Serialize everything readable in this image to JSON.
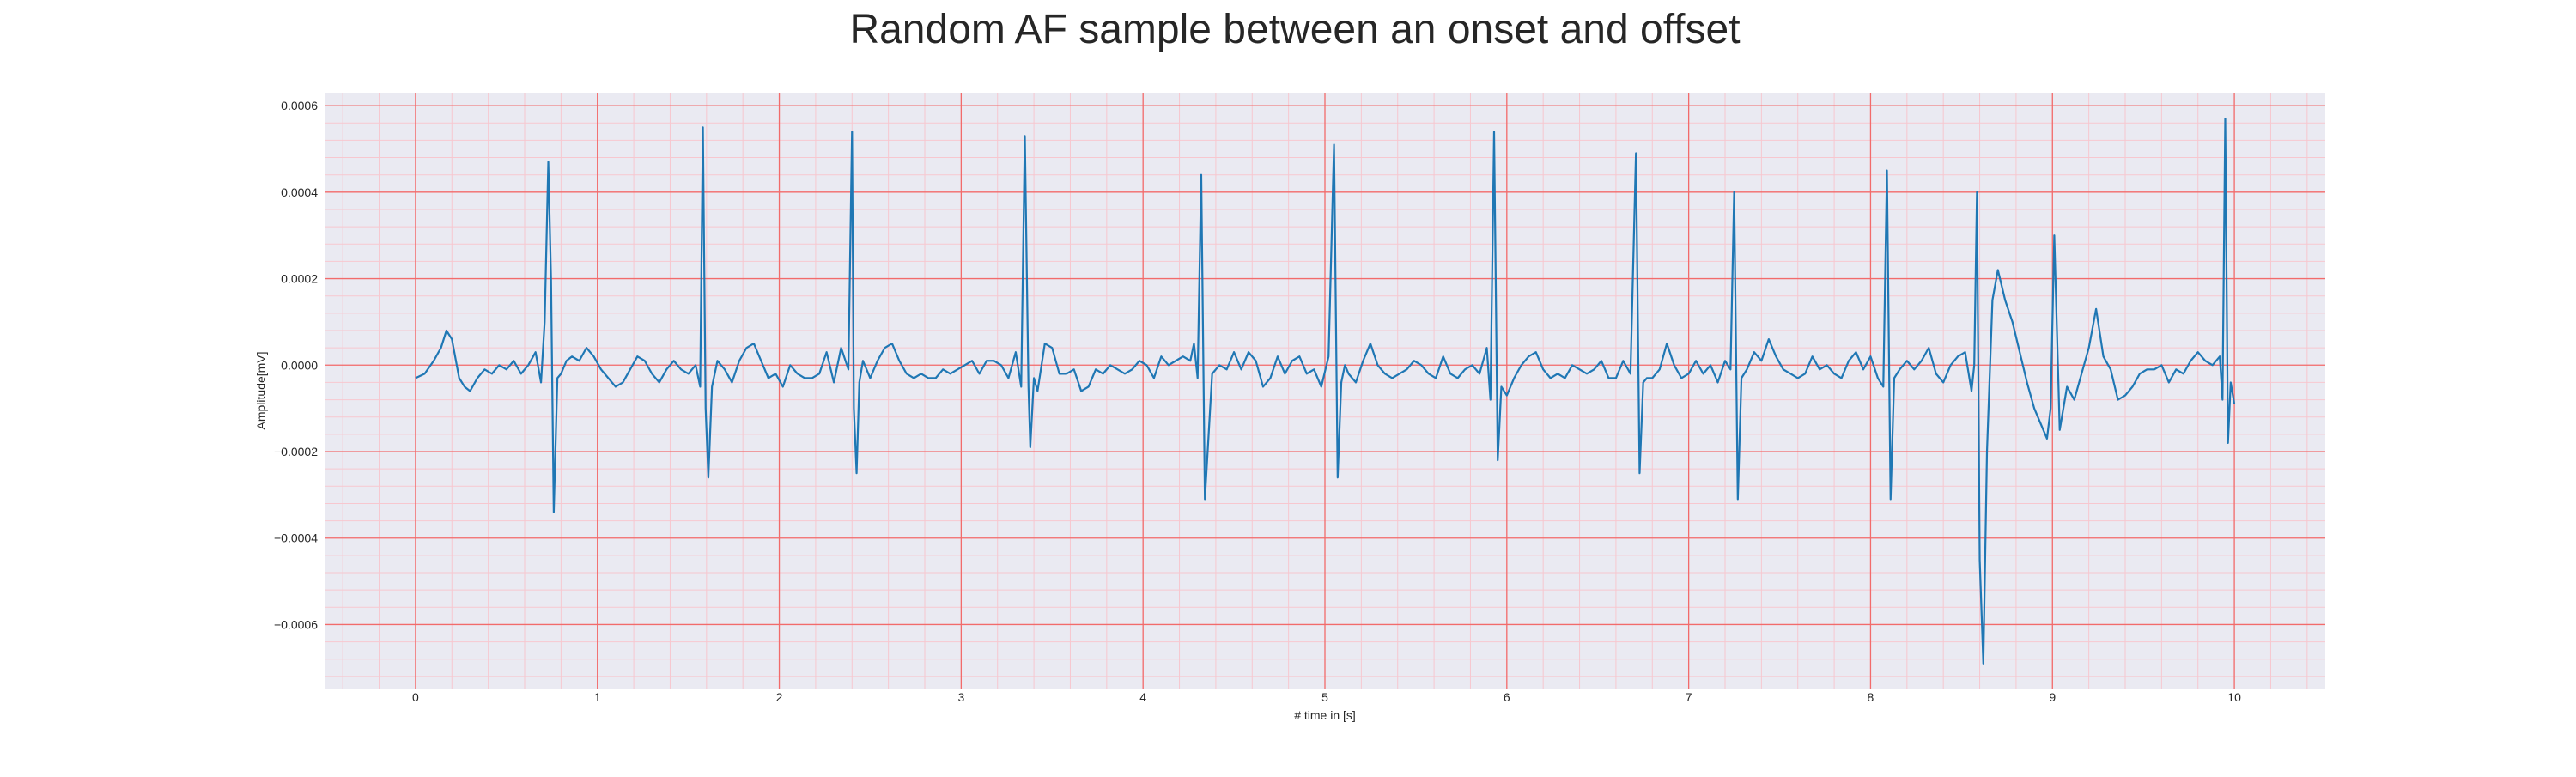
{
  "chart_data": {
    "type": "line",
    "title": "Random AF sample between an onset and offset",
    "xlabel": "# time in [s]",
    "ylabel": "Amplitude[mV]",
    "xlim": [
      -0.5,
      10.5
    ],
    "ylim": [
      -0.00075,
      0.00063
    ],
    "x_ticks": [
      0,
      1,
      2,
      3,
      4,
      5,
      6,
      7,
      8,
      9,
      10
    ],
    "x_tick_labels": [
      "0",
      "1",
      "2",
      "3",
      "4",
      "5",
      "6",
      "7",
      "8",
      "9",
      "10"
    ],
    "y_ticks": [
      -0.0006,
      -0.0004,
      -0.0002,
      0.0,
      0.0002,
      0.0004,
      0.0006
    ],
    "y_tick_labels": [
      "−0.0006",
      "−0.0004",
      "−0.0002",
      "0.0000",
      "0.0002",
      "0.0004",
      "0.0006"
    ],
    "grid": true,
    "minor_grid": true,
    "colors": {
      "line": "#1f77b4",
      "plot_background": "#eaeaf2",
      "major_grid": "#f26b6b",
      "minor_grid": "#f7c7cf"
    },
    "series": [
      {
        "x": [
          0.0,
          0.05,
          0.1,
          0.14,
          0.17,
          0.2,
          0.24,
          0.27,
          0.3,
          0.34,
          0.38,
          0.42,
          0.46,
          0.5,
          0.54,
          0.58,
          0.62,
          0.66,
          0.69,
          0.71,
          0.73,
          0.745,
          0.76,
          0.78,
          0.8,
          0.83,
          0.86,
          0.9,
          0.94,
          0.98,
          1.02,
          1.06,
          1.1,
          1.14,
          1.18,
          1.22,
          1.26,
          1.3,
          1.34,
          1.38,
          1.42,
          1.46,
          1.5,
          1.54,
          1.565,
          1.58,
          1.595,
          1.61,
          1.63,
          1.66,
          1.7,
          1.74,
          1.78,
          1.82,
          1.86,
          1.9,
          1.94,
          1.98,
          2.02,
          2.06,
          2.1,
          2.14,
          2.18,
          2.22,
          2.26,
          2.3,
          2.34,
          2.38,
          2.4,
          2.41,
          2.425,
          2.44,
          2.46,
          2.5,
          2.54,
          2.58,
          2.62,
          2.66,
          2.7,
          2.74,
          2.78,
          2.82,
          2.86,
          2.9,
          2.94,
          2.98,
          3.02,
          3.06,
          3.1,
          3.14,
          3.18,
          3.22,
          3.26,
          3.3,
          3.33,
          3.35,
          3.37,
          3.38,
          3.4,
          3.42,
          3.46,
          3.5,
          3.54,
          3.58,
          3.62,
          3.66,
          3.7,
          3.74,
          3.78,
          3.82,
          3.86,
          3.9,
          3.94,
          3.98,
          4.02,
          4.06,
          4.1,
          4.14,
          4.18,
          4.22,
          4.26,
          4.28,
          4.3,
          4.32,
          4.34,
          4.38,
          4.42,
          4.46,
          4.5,
          4.54,
          4.58,
          4.62,
          4.66,
          4.7,
          4.74,
          4.78,
          4.82,
          4.86,
          4.9,
          4.94,
          4.98,
          5.02,
          5.05,
          5.07,
          5.09,
          5.11,
          5.13,
          5.17,
          5.21,
          5.25,
          5.29,
          5.33,
          5.37,
          5.41,
          5.45,
          5.49,
          5.53,
          5.57,
          5.61,
          5.65,
          5.69,
          5.73,
          5.77,
          5.81,
          5.85,
          5.89,
          5.91,
          5.93,
          5.95,
          5.97,
          6.0,
          6.04,
          6.08,
          6.12,
          6.16,
          6.2,
          6.24,
          6.28,
          6.32,
          6.36,
          6.4,
          6.44,
          6.48,
          6.52,
          6.56,
          6.6,
          6.64,
          6.68,
          6.71,
          6.73,
          6.75,
          6.77,
          6.8,
          6.84,
          6.88,
          6.92,
          6.96,
          7.0,
          7.04,
          7.08,
          7.12,
          7.16,
          7.2,
          7.23,
          7.25,
          7.27,
          7.29,
          7.32,
          7.36,
          7.4,
          7.44,
          7.48,
          7.52,
          7.56,
          7.6,
          7.64,
          7.68,
          7.72,
          7.76,
          7.8,
          7.84,
          7.88,
          7.92,
          7.96,
          8.0,
          8.04,
          8.07,
          8.09,
          8.11,
          8.13,
          8.16,
          8.2,
          8.24,
          8.28,
          8.32,
          8.36,
          8.4,
          8.44,
          8.48,
          8.52,
          8.555,
          8.57,
          8.585,
          8.6,
          8.62,
          8.64,
          8.67,
          8.7,
          8.74,
          8.78,
          8.82,
          8.86,
          8.9,
          8.94,
          8.97,
          8.99,
          9.01,
          9.04,
          9.08,
          9.12,
          9.16,
          9.2,
          9.24,
          9.28,
          9.32,
          9.36,
          9.4,
          9.44,
          9.48,
          9.52,
          9.56,
          9.6,
          9.64,
          9.68,
          9.72,
          9.76,
          9.8,
          9.84,
          9.88,
          9.92,
          9.935,
          9.95,
          9.965,
          9.98,
          10.0
        ],
        "y": [
          -3e-05,
          -2e-05,
          1e-05,
          4e-05,
          8e-05,
          6e-05,
          -3e-05,
          -5e-05,
          -6e-05,
          -3e-05,
          -1e-05,
          -2e-05,
          0.0,
          -1e-05,
          1e-05,
          -2e-05,
          0.0,
          3e-05,
          -4e-05,
          0.0001,
          0.00047,
          0.0002,
          -0.00034,
          -3e-05,
          -2e-05,
          1e-05,
          2e-05,
          1e-05,
          4e-05,
          2e-05,
          -1e-05,
          -3e-05,
          -5e-05,
          -4e-05,
          -1e-05,
          2e-05,
          1e-05,
          -2e-05,
          -4e-05,
          -1e-05,
          1e-05,
          -1e-05,
          -2e-05,
          0.0,
          -5e-05,
          0.00055,
          -0.0001,
          -0.00026,
          -5e-05,
          1e-05,
          -1e-05,
          -4e-05,
          1e-05,
          4e-05,
          5e-05,
          1e-05,
          -3e-05,
          -2e-05,
          -5e-05,
          0.0,
          -2e-05,
          -3e-05,
          -3e-05,
          -2e-05,
          3e-05,
          -4e-05,
          4e-05,
          -1e-05,
          0.00054,
          -0.0001,
          -0.00025,
          -4e-05,
          1e-05,
          -3e-05,
          1e-05,
          4e-05,
          5e-05,
          1e-05,
          -2e-05,
          -3e-05,
          -2e-05,
          -3e-05,
          -3e-05,
          -1e-05,
          -2e-05,
          -1e-05,
          0.0,
          1e-05,
          -2e-05,
          1e-05,
          1e-05,
          0.0,
          -3e-05,
          3e-05,
          -5e-05,
          0.00053,
          -5e-05,
          -0.00019,
          -3e-05,
          -6e-05,
          5e-05,
          4e-05,
          -2e-05,
          -2e-05,
          -1e-05,
          -6e-05,
          -5e-05,
          -1e-05,
          -2e-05,
          0.0,
          -1e-05,
          -2e-05,
          -1e-05,
          1e-05,
          0.0,
          -3e-05,
          2e-05,
          0.0,
          1e-05,
          2e-05,
          1e-05,
          5e-05,
          -3e-05,
          0.00044,
          -0.00031,
          -2e-05,
          0.0,
          -1e-05,
          3e-05,
          -1e-05,
          3e-05,
          1e-05,
          -5e-05,
          -3e-05,
          2e-05,
          -2e-05,
          1e-05,
          2e-05,
          -2e-05,
          -1e-05,
          -5e-05,
          2e-05,
          0.00051,
          -0.00026,
          -4e-05,
          0.0,
          -2e-05,
          -4e-05,
          1e-05,
          5e-05,
          0.0,
          -2e-05,
          -3e-05,
          -2e-05,
          -1e-05,
          1e-05,
          0.0,
          -2e-05,
          -3e-05,
          2e-05,
          -2e-05,
          -3e-05,
          -1e-05,
          0.0,
          -2e-05,
          4e-05,
          -8e-05,
          0.00054,
          -0.00022,
          -5e-05,
          -7e-05,
          -3e-05,
          0.0,
          2e-05,
          3e-05,
          -1e-05,
          -3e-05,
          -2e-05,
          -3e-05,
          0.0,
          -1e-05,
          -2e-05,
          -1e-05,
          1e-05,
          -3e-05,
          -3e-05,
          1e-05,
          -2e-05,
          0.00049,
          -0.00025,
          -4e-05,
          -3e-05,
          -3e-05,
          -1e-05,
          5e-05,
          0.0,
          -3e-05,
          -2e-05,
          1e-05,
          -2e-05,
          0.0,
          -4e-05,
          1e-05,
          -1e-05,
          0.0004,
          -0.00031,
          -3e-05,
          -1e-05,
          3e-05,
          1e-05,
          6e-05,
          2e-05,
          -1e-05,
          -2e-05,
          -3e-05,
          -2e-05,
          2e-05,
          -1e-05,
          0.0,
          -2e-05,
          -3e-05,
          1e-05,
          3e-05,
          -1e-05,
          2e-05,
          -3e-05,
          -5e-05,
          0.00045,
          -0.00031,
          -3e-05,
          -1e-05,
          1e-05,
          -1e-05,
          1e-05,
          4e-05,
          -2e-05,
          -4e-05,
          0.0,
          2e-05,
          3e-05,
          -6e-05,
          0.0,
          0.0004,
          -0.00045,
          -0.00069,
          -0.0002,
          0.00015,
          0.00022,
          0.00015,
          0.0001,
          3e-05,
          -4e-05,
          -0.0001,
          -0.00014,
          -0.00017,
          -0.0001,
          0.0003,
          -0.00015,
          -5e-05,
          -8e-05,
          -2e-05,
          4e-05,
          0.00013,
          2e-05,
          -1e-05,
          -8e-05,
          -7e-05,
          -5e-05,
          -2e-05,
          -1e-05,
          -1e-05,
          0.0,
          -4e-05,
          -1e-05,
          -2e-05,
          1e-05,
          3e-05,
          1e-05,
          0.0,
          2e-05,
          -8e-05,
          0.00057,
          -0.00018,
          -4e-05,
          -9e-05
        ]
      }
    ]
  }
}
